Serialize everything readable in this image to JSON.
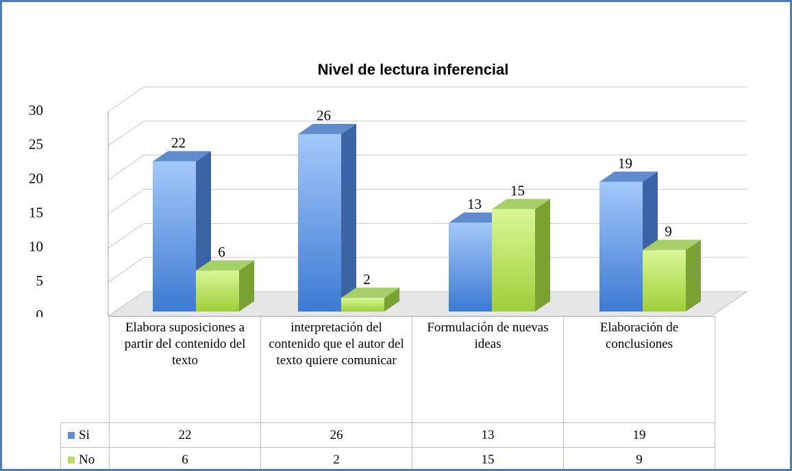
{
  "chart_data": {
    "type": "bar3d",
    "title": "Nivel de lectura inferencial",
    "categories": [
      "Elabora suposiciones a partir del contenido del texto",
      "interpretación del contenido que el autor del texto quiere comunicar",
      "Formulación de nuevas ideas",
      "Elaboración de conclusiones"
    ],
    "series": [
      {
        "name": "Si",
        "color": "#5b8fdc",
        "values": [
          22,
          26,
          13,
          19
        ]
      },
      {
        "name": "No",
        "color": "#b4e05a",
        "values": [
          6,
          2,
          15,
          9
        ]
      }
    ],
    "ylim": [
      0,
      30
    ],
    "yticks": [
      0,
      5,
      10,
      15,
      20,
      25,
      30
    ],
    "grid": true
  }
}
